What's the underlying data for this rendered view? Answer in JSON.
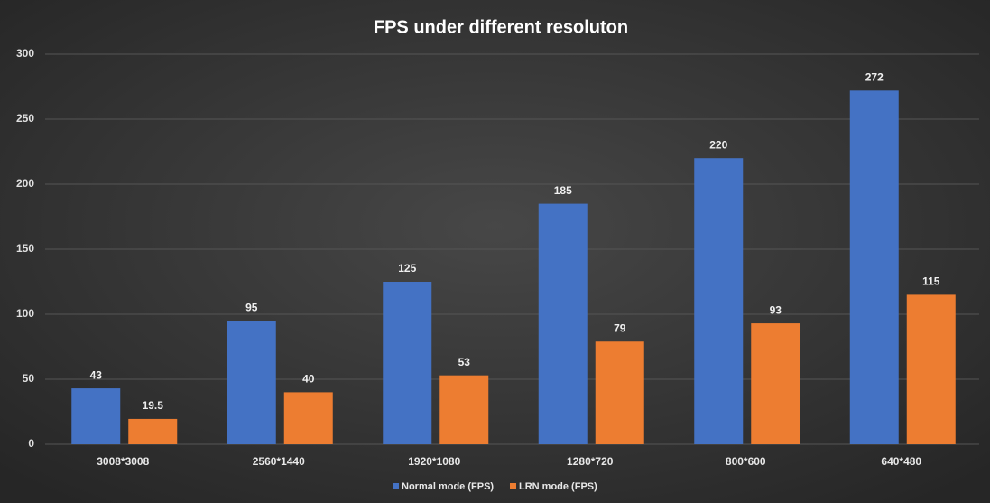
{
  "chart_data": {
    "type": "bar",
    "title": "FPS under different resoluton",
    "categories": [
      "3008*3008",
      "2560*1440",
      "1920*1080",
      "1280*720",
      "800*600",
      "640*480"
    ],
    "series": [
      {
        "name": "Normal mode (FPS)",
        "color": "#4472c4",
        "values": [
          43,
          95,
          125,
          185,
          220,
          272
        ]
      },
      {
        "name": "LRN mode (FPS)",
        "color": "#ed7d31",
        "values": [
          19.5,
          40,
          53,
          79,
          93,
          115
        ]
      }
    ],
    "ylim": [
      0,
      300
    ],
    "yticks": [
      0,
      50,
      100,
      150,
      200,
      250,
      300
    ],
    "grid": true,
    "legend": "bottom"
  }
}
